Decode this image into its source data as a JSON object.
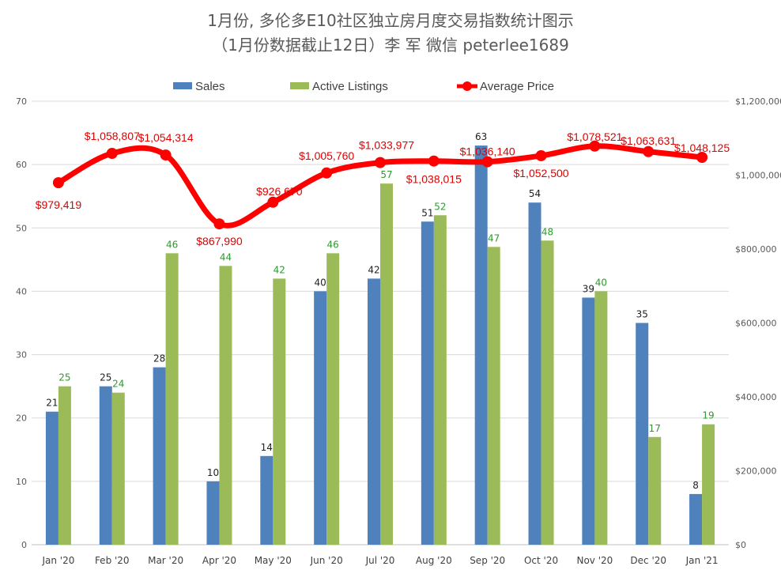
{
  "title_line1": "1月份, 多伦多E10社区独立房月度交易指数统计图示",
  "title_line2": "（1月份数据截止12日）李 军 微信 peterlee1689",
  "legend": [
    {
      "key": "sales",
      "label": "Sales",
      "color": "#4f81bd"
    },
    {
      "key": "listings",
      "label": "Active Listings",
      "color": "#9bbb59"
    },
    {
      "key": "price",
      "label": "Average Price",
      "color": "#ff0000"
    }
  ],
  "chart_data": {
    "type": "bar",
    "categories": [
      "Jan '20",
      "Feb '20",
      "Mar '20",
      "Apr '20",
      "May '20",
      "Jun '20",
      "Jul '20",
      "Aug '20",
      "Sep '20",
      "Oct '20",
      "Nov '20",
      "Dec '20",
      "Jan '21"
    ],
    "series": [
      {
        "name": "Sales",
        "type": "bar",
        "axis": "left",
        "color": "#4f81bd",
        "values": [
          21,
          25,
          28,
          10,
          14,
          40,
          42,
          51,
          63,
          54,
          39,
          35,
          8
        ]
      },
      {
        "name": "Active Listings",
        "type": "bar",
        "axis": "left",
        "color": "#9bbb59",
        "values": [
          25,
          24,
          46,
          44,
          42,
          46,
          57,
          52,
          47,
          48,
          40,
          17,
          19
        ]
      },
      {
        "name": "Average Price",
        "type": "line",
        "axis": "right",
        "color": "#ff0000",
        "values": [
          979419,
          1058807,
          1054314,
          867990,
          926670,
          1005760,
          1033977,
          1038015,
          1036140,
          1052500,
          1078521,
          1063631,
          1048125
        ]
      }
    ],
    "price_labels": [
      "$979,419",
      "$1,058,807",
      "$1,054,314",
      "$867,990",
      "$926,670",
      "$1,005,760",
      "$1,033,977",
      "$1,038,015",
      "$1,036,140",
      "$1,052,500",
      "$1,078,521",
      "$1,063,631",
      "$1,048,125"
    ],
    "left_axis": {
      "min": 0,
      "max": 70,
      "step": 10,
      "ticks": [
        "0",
        "10",
        "20",
        "30",
        "40",
        "50",
        "60",
        "70"
      ]
    },
    "right_axis": {
      "min": 0,
      "max": 1200000,
      "step": 200000,
      "ticks": [
        "$0",
        "$200,000",
        "$400,000",
        "$600,000",
        "$800,000",
        "$1,000,000",
        "$1,200,000"
      ]
    },
    "grid": true,
    "legend_position": "top"
  }
}
